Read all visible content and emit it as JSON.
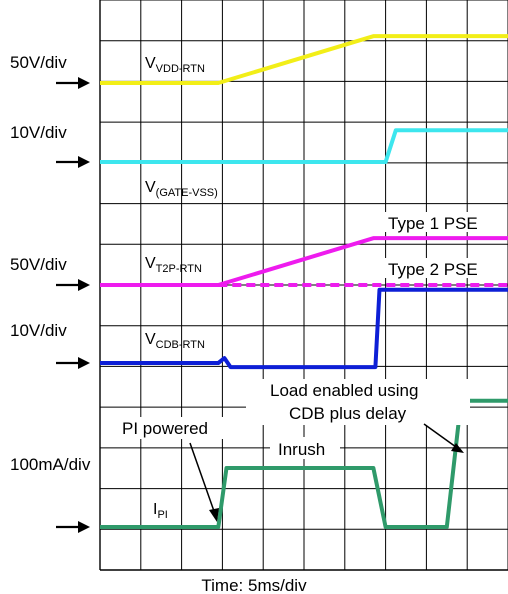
{
  "chart_data": {
    "type": "line",
    "title": "",
    "xlabel": "Time: 5ms/div",
    "x_divisions": 10,
    "y_divisions": 14,
    "grid": true,
    "scales": [
      "50V/div",
      "10V/div",
      "50V/div",
      "10V/div",
      "100mA/div"
    ],
    "signal_names": [
      {
        "main": "V",
        "sub": "VDD-RTN"
      },
      {
        "main": "V",
        "sub": "(GATE-VSS)"
      },
      {
        "main": "V",
        "sub": "T2P-RTN"
      },
      {
        "main": "V",
        "sub": "CDB-RTN"
      },
      {
        "main": "I",
        "sub": "PI"
      }
    ],
    "annotations": [
      "Type 1 PSE",
      "Type 2 PSE",
      "Load enabled using",
      "CDB plus delay",
      "PI powered",
      "Inrush"
    ],
    "colors": {
      "vdd": "#f2ee18",
      "gate": "#3de6ee",
      "t2p": "#ee1bee",
      "cdb": "#0d1fd6",
      "ipi": "#2f9a6a",
      "grid": "#000000"
    },
    "series": [
      {
        "channel": 0,
        "color_key": "vdd",
        "dashed": false,
        "points": [
          [
            0,
            0
          ],
          [
            2.9,
            0
          ],
          [
            6.7,
            1.15
          ],
          [
            10,
            1.15
          ]
        ]
      },
      {
        "channel": 1,
        "color_key": "gate",
        "dashed": false,
        "points": [
          [
            0,
            0
          ],
          [
            7.0,
            0
          ],
          [
            7.25,
            0.78
          ],
          [
            10,
            0.78
          ]
        ]
      },
      {
        "channel": 2,
        "color_key": "t2p",
        "dashed": false,
        "points": [
          [
            0,
            0
          ],
          [
            2.9,
            0
          ],
          [
            6.7,
            1.15
          ],
          [
            10,
            1.15
          ]
        ]
      },
      {
        "channel": 2,
        "color_key": "t2p",
        "dashed": true,
        "points": [
          [
            2.9,
            0
          ],
          [
            10,
            0
          ]
        ]
      },
      {
        "channel": 3,
        "color_key": "cdb",
        "dashed": false,
        "points": [
          [
            0,
            0
          ],
          [
            2.9,
            0
          ],
          [
            3.05,
            0.12
          ],
          [
            3.2,
            -0.1
          ],
          [
            6.75,
            -0.1
          ],
          [
            6.85,
            1.8
          ],
          [
            10,
            1.8
          ]
        ]
      },
      {
        "channel": 4,
        "color_key": "ipi",
        "dashed": false,
        "points": [
          [
            0,
            0
          ],
          [
            2.9,
            0
          ],
          [
            3.1,
            1.45
          ],
          [
            6.7,
            1.45
          ],
          [
            7.0,
            0
          ],
          [
            8.5,
            0
          ],
          [
            8.85,
            3.1
          ],
          [
            10,
            3.1
          ]
        ]
      }
    ]
  }
}
